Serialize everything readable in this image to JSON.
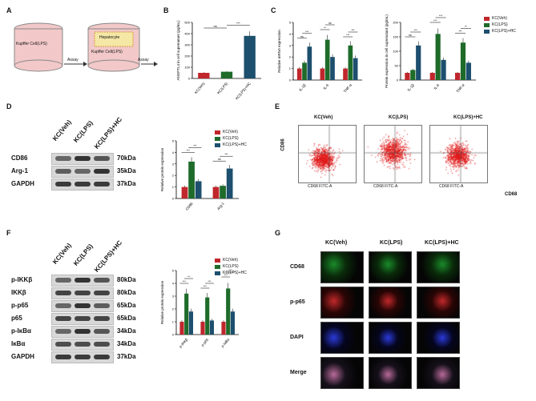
{
  "panels": {
    "A": "A",
    "B": "B",
    "C": "C",
    "D": "D",
    "E": "E",
    "F": "F",
    "G": "G"
  },
  "panelA": {
    "dish1": "Kupffer Cell(LPS)",
    "dish2_top": "Hepatocyte",
    "dish2_bottom": "Kupffer Cell(LPS)",
    "arrow1": "Assay",
    "arrow2": "Assay"
  },
  "legend": {
    "veh": "KC(Veh)",
    "lps": "KC(LPS)",
    "hc": "KC(LPS)+HC"
  },
  "colors": {
    "veh": "#c0262c",
    "lps": "#1e6b2a",
    "hc": "#1d4f6e"
  },
  "blotD": {
    "header": [
      "KC(Veh)",
      "KC(LPS)",
      "KC(LPS)+HC"
    ],
    "rows": [
      {
        "name": "CD86",
        "size": "70kDa"
      },
      {
        "name": "Arg-1",
        "size": "35kDa"
      },
      {
        "name": "GAPDH",
        "size": "37kDa"
      }
    ]
  },
  "blotF": {
    "header": [
      "KC(Veh)",
      "KC(LPS)",
      "KC(LPS)+HC"
    ],
    "rows": [
      {
        "name": "p-IKKβ",
        "size": "80kDa"
      },
      {
        "name": "IKKβ",
        "size": "80kDa"
      },
      {
        "name": "p-p65",
        "size": "65kDa"
      },
      {
        "name": "p65",
        "size": "65kDa"
      },
      {
        "name": "p-IκBα",
        "size": "34kDa"
      },
      {
        "name": "IκBα",
        "size": "34kDa"
      },
      {
        "name": "GAPDH",
        "size": "37kDa"
      }
    ]
  },
  "flowE": {
    "titles": [
      "KC(Veh)",
      "KC(LPS)",
      "KC(LPS)+HC"
    ],
    "yaxis": "CD86",
    "xaxis": "CD68",
    "xtick": "CD68 FITC-A",
    "ytick": "CD86 APC-A"
  },
  "micG": {
    "columns": [
      "KC(Veh)",
      "KC(LPS)",
      "KC(LPS)+HC"
    ],
    "rows": [
      "CD68",
      "p-p65",
      "DAPI",
      "Merge"
    ]
  },
  "chart_data": [
    {
      "id": "B",
      "type": "bar",
      "categories": [
        "KC(Veh)",
        "KC(LPS)",
        "KC(LPS)+HC"
      ],
      "values": [
        50,
        60,
        380
      ],
      "errors": [
        6,
        6,
        40
      ],
      "ylabel": "ANGPTL4 in cell supernatant (pg/mL)",
      "ylim": [
        0,
        500
      ],
      "yticks": [
        "0",
        "100",
        "200",
        "300",
        "400",
        "500"
      ],
      "sig": [
        "ns",
        "***"
      ]
    },
    {
      "id": "C1",
      "type": "bar",
      "categories": [
        "IL-1β",
        "IL-6",
        "TNF-α"
      ],
      "series": [
        {
          "name": "KC(Veh)",
          "values": [
            1.0,
            1.0,
            1.0
          ]
        },
        {
          "name": "KC(LPS)",
          "values": [
            1.5,
            3.5,
            3.0
          ]
        },
        {
          "name": "KC(LPS)+HC",
          "values": [
            2.9,
            2.0,
            1.9
          ]
        }
      ],
      "ylabel": "Relative mRNA expression",
      "ylim": [
        0,
        5
      ],
      "yticks": [
        "0",
        "1",
        "2",
        "3",
        "4",
        "5"
      ],
      "sig": [
        "ns",
        "***",
        "**",
        "ns",
        "***",
        "***"
      ]
    },
    {
      "id": "C2",
      "type": "bar",
      "categories": [
        "IL-1β",
        "IL-6",
        "TNF-α"
      ],
      "series": [
        {
          "name": "KC(Veh)",
          "values": [
            25,
            25,
            25
          ]
        },
        {
          "name": "KC(LPS)",
          "values": [
            35,
            160,
            130
          ]
        },
        {
          "name": "KC(LPS)+HC",
          "values": [
            120,
            70,
            60
          ]
        }
      ],
      "ylabel": "Protein expression in cell supernatant (pg/mL)",
      "ylim": [
        0,
        200
      ],
      "yticks": [
        "0",
        "50",
        "100",
        "150",
        "200"
      ],
      "sig": [
        "ns",
        "***",
        "***",
        "***",
        "***",
        "**"
      ]
    },
    {
      "id": "D",
      "type": "bar",
      "categories": [
        "CD86",
        "Arg-1"
      ],
      "series": [
        {
          "name": "KC(Veh)",
          "values": [
            1.0,
            1.0
          ]
        },
        {
          "name": "KC(LPS)",
          "values": [
            3.2,
            1.1
          ]
        },
        {
          "name": "KC(LPS)+HC",
          "values": [
            1.5,
            2.6
          ]
        }
      ],
      "ylabel": "Relative protein expression",
      "ylim": [
        0,
        5
      ],
      "yticks": [
        "0",
        "1",
        "2",
        "3",
        "4",
        "5"
      ],
      "sig": [
        "***",
        "***",
        "ns",
        "***"
      ]
    },
    {
      "id": "F",
      "type": "bar",
      "categories": [
        "p-IKKβ",
        "p-p65",
        "p-IκBα"
      ],
      "series": [
        {
          "name": "KC(Veh)",
          "values": [
            1.0,
            1.0,
            1.0
          ]
        },
        {
          "name": "KC(LPS)",
          "values": [
            3.2,
            2.9,
            3.6
          ]
        },
        {
          "name": "KC(LPS)+HC",
          "values": [
            1.8,
            1.1,
            1.8
          ]
        }
      ],
      "ylabel": "Relative protein expression",
      "ylim": [
        0,
        5
      ],
      "yticks": [
        "0",
        "1",
        "2",
        "3",
        "4",
        "5"
      ],
      "sig": [
        "***",
        "**",
        "***",
        "***",
        "***",
        "***"
      ]
    }
  ]
}
